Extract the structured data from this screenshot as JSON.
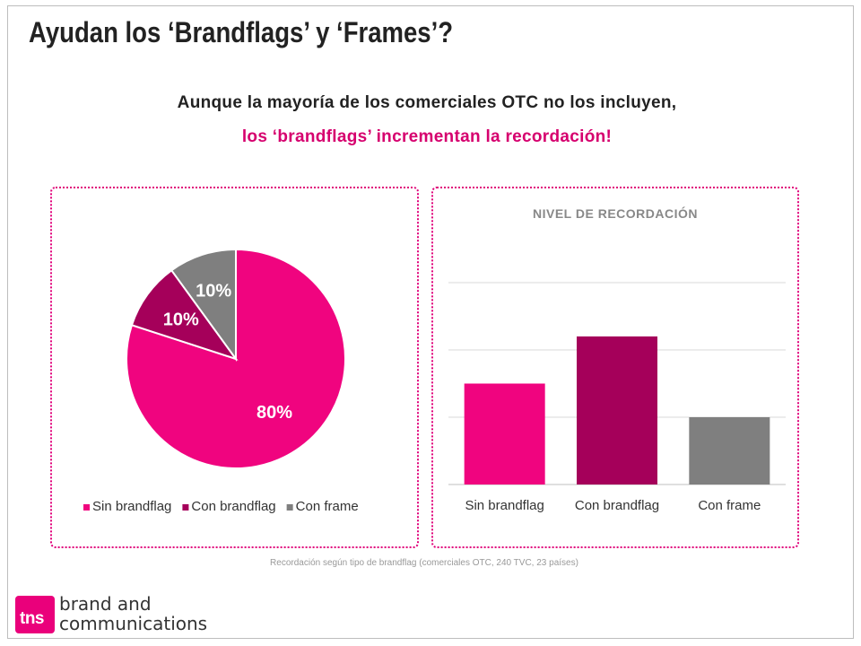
{
  "title": "Ayudan los ‘Brandflags’ y ‘Frames’?",
  "subtitle_line1": "Aunque la mayoría de los comerciales OTC no los incluyen,",
  "subtitle_line2": "los ‘brandflags’ incrementan la recordación!",
  "caption": "Recordación según tipo de brandflag (comerciales OTC, 240 TVC, 23 países)",
  "logo": {
    "mark": "tns",
    "line1": "brand and",
    "line2": "communications"
  },
  "colors": {
    "sin_brandflag": "#f0047f",
    "con_brandflag": "#a5005a",
    "con_frame": "#7f7f7f",
    "accent": "#d6006e"
  },
  "chart_data": [
    {
      "type": "pie",
      "categories": [
        "Sin brandflag",
        "Con brandflag",
        "Con frame"
      ],
      "values": [
        80,
        10,
        10
      ],
      "data_labels": [
        "80%",
        "10%",
        "10%"
      ],
      "legend": "bottom"
    },
    {
      "type": "bar",
      "title": "NIVEL DE RECORDACIÓN",
      "categories": [
        "Sin brandflag",
        "Con brandflag",
        "Con frame"
      ],
      "values": [
        1.5,
        2.2,
        1.0
      ],
      "ylim": [
        0,
        3
      ],
      "grid": true
    }
  ]
}
